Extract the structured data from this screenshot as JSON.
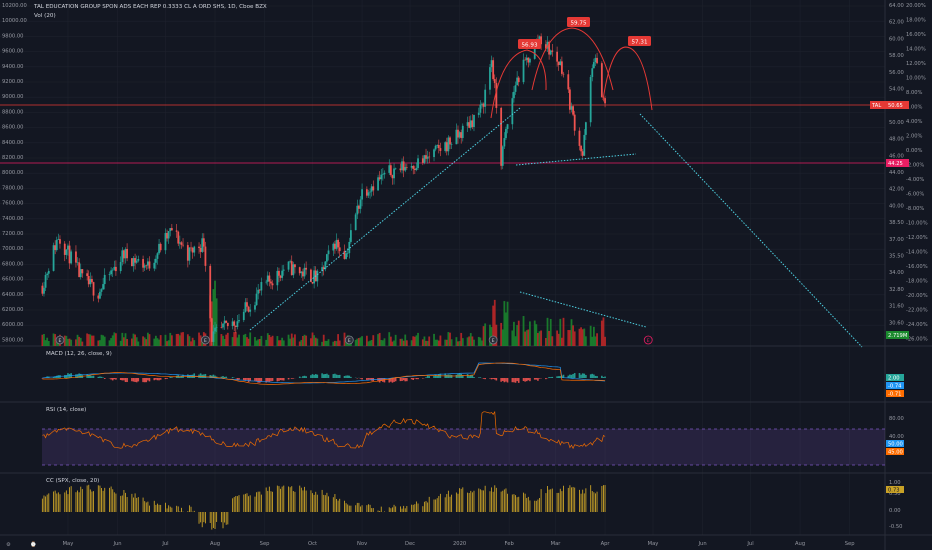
{
  "header": {
    "title": "TAL EDUCATION GROUP SPON ADS EACH REP 0.3333 CL A ORD SHS, 1D, Cboe BZX",
    "vol_label": "Vol (20)"
  },
  "colors": {
    "background": "#131722",
    "up": "#26a69a",
    "down": "#ef5350",
    "vol_up": "#1b8a2e",
    "vol_down": "#c62828",
    "trend_line": "#4dd0e1",
    "pattern": "#e53935",
    "grid": "#1e222d",
    "rsi_band": "#7e57c2",
    "macd": "#2196f3",
    "signal": "#ff6d00",
    "cc": "#c9a227"
  },
  "left_scale": [
    "10200.00",
    "10000.00",
    "9800.00",
    "9600.00",
    "9400.00",
    "9200.00",
    "9000.00",
    "8800.00",
    "8600.00",
    "8400.00",
    "8200.00",
    "8000.00",
    "7800.00",
    "7600.00",
    "7400.00",
    "7200.00",
    "7000.00",
    "6800.00",
    "6600.00",
    "6400.00",
    "6200.00",
    "6000.00",
    "5800.00"
  ],
  "right_scale": [
    "64.00",
    "62.00",
    "60.00",
    "58.00",
    "56.00",
    "54.00",
    "52.00",
    "50.00",
    "48.00",
    "46.00",
    "44.00",
    "42.00",
    "40.00",
    "38.50",
    "37.00",
    "35.50",
    "34.00",
    "32.80",
    "31.60",
    "30.60"
  ],
  "pct_scale": [
    "20.00%",
    "18.00%",
    "16.00%",
    "14.00%",
    "12.00%",
    "10.00%",
    "8.00%",
    "6.00%",
    "4.00%",
    "2.00%",
    "0.00%",
    "-2.00%",
    "-4.00%",
    "-6.00%",
    "-8.00%",
    "-10.00%",
    "-12.00%",
    "-14.00%",
    "-16.00%",
    "-18.00%",
    "-20.00%",
    "-22.00%",
    "-24.00%",
    "-26.00%"
  ],
  "time_axis": [
    "May",
    "Jun",
    "Jul",
    "Aug",
    "Sep",
    "Oct",
    "Nov",
    "Dec",
    "2020",
    "Feb",
    "Mar",
    "Apr",
    "May",
    "Jun",
    "Jul",
    "Aug",
    "Sep"
  ],
  "peaks": {
    "left": "56.93",
    "head": "59.75",
    "right": "57.31"
  },
  "price_tag": {
    "symbol": "TAL",
    "value": "50.65"
  },
  "support_tag": "44.25",
  "vol_tag": "2.719M",
  "earnings_marker": "E",
  "panes": {
    "macd": {
      "label": "MACD (12, 26, close, 9)",
      "scale": [],
      "tags": [
        "2.00",
        "-0.74",
        "-0.71"
      ]
    },
    "rsi": {
      "label": "RSI (14, close)",
      "scale": [
        "80.00",
        "40.00",
        "20.00"
      ],
      "tags": [
        "50.00",
        "45.00"
      ]
    },
    "cc": {
      "label": "CC (SPX, close, 20)",
      "scale": [
        "1.00",
        "0.50",
        "0.00",
        "-0.50"
      ],
      "tags": [
        "0.73"
      ]
    }
  },
  "chart_data": {
    "type": "candlestick",
    "title": "TAL EDUCATION GROUP SPON ADS EACH REP 0.3333 CL A ORD SHS, 1D, Cboe BZX",
    "x_range": [
      "2019-04",
      "2020-09"
    ],
    "y_range": [
      30.6,
      64.0
    ],
    "resistance_level": 50.65,
    "support_level": 44.25,
    "shoulder_peaks": [
      56.93,
      59.75,
      57.31
    ],
    "keypoints": [
      {
        "date": "2019-04-15",
        "close": 34.5
      },
      {
        "date": "2019-04-25",
        "close": 38.5
      },
      {
        "date": "2019-05-10",
        "close": 35.0
      },
      {
        "date": "2019-05-20",
        "close": 34.0
      },
      {
        "date": "2019-06-05",
        "close": 37.0
      },
      {
        "date": "2019-06-20",
        "close": 36.0
      },
      {
        "date": "2019-07-05",
        "close": 39.0
      },
      {
        "date": "2019-07-15",
        "close": 37.0
      },
      {
        "date": "2019-07-25",
        "close": 38.0
      },
      {
        "date": "2019-07-30",
        "close": 30.8
      },
      {
        "date": "2019-08-15",
        "close": 32.0
      },
      {
        "date": "2019-09-01",
        "close": 34.5
      },
      {
        "date": "2019-09-15",
        "close": 36.0
      },
      {
        "date": "2019-10-05",
        "close": 35.0
      },
      {
        "date": "2019-10-15",
        "close": 38.0
      },
      {
        "date": "2019-10-22",
        "close": 37.0
      },
      {
        "date": "2019-11-01",
        "close": 42.5
      },
      {
        "date": "2019-11-20",
        "close": 44.5
      },
      {
        "date": "2019-12-10",
        "close": 45.5
      },
      {
        "date": "2019-12-31",
        "close": 48.0
      },
      {
        "date": "2020-01-15",
        "close": 51.0
      },
      {
        "date": "2020-01-21",
        "close": 56.9
      },
      {
        "date": "2020-01-27",
        "close": 45.5
      },
      {
        "date": "2020-02-05",
        "close": 54.0
      },
      {
        "date": "2020-02-20",
        "close": 59.75
      },
      {
        "date": "2020-03-05",
        "close": 56.0
      },
      {
        "date": "2020-03-12",
        "close": 50.0
      },
      {
        "date": "2020-03-18",
        "close": 46.0
      },
      {
        "date": "2020-03-25",
        "close": 57.3
      },
      {
        "date": "2020-04-02",
        "close": 50.65
      }
    ]
  }
}
